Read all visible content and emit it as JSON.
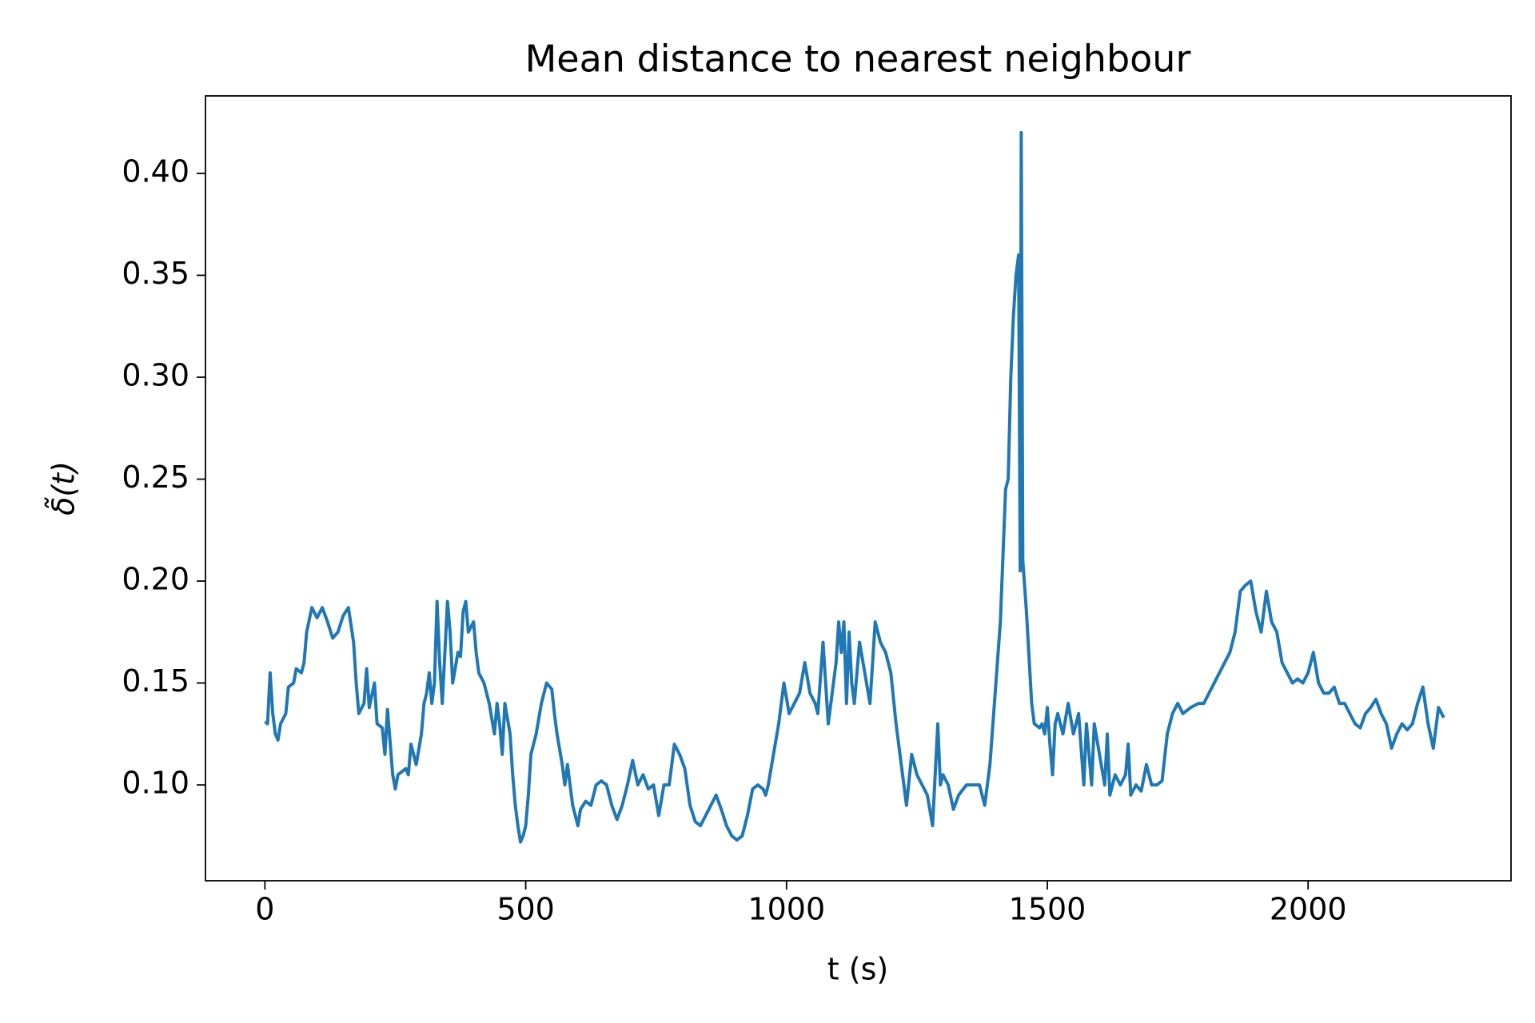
{
  "chart_data": {
    "type": "line",
    "title": "Mean distance to nearest neighbour",
    "xlabel": "t (s)",
    "ylabel": "δ̃(t)",
    "color": "#1f77b4",
    "xlim": [
      -114,
      2389
    ],
    "ylim": [
      0.053,
      0.438
    ],
    "xticks": [
      0,
      500,
      1000,
      1500,
      2000
    ],
    "yticks": [
      {
        "value": 0.1,
        "label": "0.10"
      },
      0.15,
      {
        "value": 0.2,
        "label": "0.20"
      },
      0.25,
      {
        "value": 0.3,
        "label": "0.30"
      },
      0.35,
      {
        "value": 0.4,
        "label": "0.40"
      }
    ],
    "x": [
      0,
      5,
      10,
      15,
      20,
      25,
      30,
      40,
      45,
      55,
      60,
      70,
      75,
      80,
      90,
      100,
      110,
      120,
      130,
      140,
      150,
      160,
      170,
      175,
      180,
      190,
      195,
      200,
      210,
      215,
      225,
      230,
      235,
      245,
      250,
      255,
      270,
      275,
      280,
      290,
      300,
      305,
      310,
      315,
      320,
      325,
      330,
      335,
      340,
      350,
      355,
      360,
      370,
      375,
      380,
      385,
      390,
      400,
      405,
      410,
      420,
      425,
      430,
      440,
      445,
      450,
      455,
      460,
      470,
      475,
      480,
      485,
      490,
      495,
      500,
      505,
      510,
      520,
      530,
      540,
      550,
      555,
      560,
      570,
      575,
      580,
      590,
      600,
      605,
      615,
      625,
      635,
      645,
      655,
      665,
      675,
      685,
      695,
      705,
      715,
      725,
      735,
      745,
      755,
      765,
      775,
      785,
      795,
      805,
      815,
      825,
      835,
      845,
      855,
      865,
      875,
      885,
      895,
      905,
      915,
      925,
      935,
      945,
      955,
      960,
      965,
      975,
      985,
      995,
      1005,
      1015,
      1025,
      1035,
      1045,
      1055,
      1060,
      1070,
      1075,
      1080,
      1090,
      1095,
      1100,
      1105,
      1110,
      1115,
      1120,
      1125,
      1130,
      1140,
      1150,
      1160,
      1170,
      1180,
      1190,
      1200,
      1210,
      1220,
      1230,
      1240,
      1250,
      1260,
      1270,
      1280,
      1290,
      1295,
      1300,
      1310,
      1320,
      1330,
      1345,
      1360,
      1370,
      1380,
      1390,
      1400,
      1410,
      1420,
      1425,
      1430,
      1435,
      1440,
      1445,
      1448,
      1450,
      1453,
      1460,
      1470,
      1475,
      1485,
      1490,
      1495,
      1500,
      1505,
      1510,
      1515,
      1520,
      1530,
      1540,
      1550,
      1560,
      1570,
      1575,
      1585,
      1590,
      1600,
      1610,
      1615,
      1620,
      1630,
      1640,
      1650,
      1655,
      1660,
      1670,
      1680,
      1690,
      1700,
      1710,
      1720,
      1730,
      1740,
      1750,
      1760,
      1775,
      1790,
      1800,
      1810,
      1820,
      1830,
      1840,
      1850,
      1860,
      1870,
      1880,
      1890,
      1900,
      1910,
      1920,
      1930,
      1940,
      1950,
      1960,
      1970,
      1980,
      1990,
      2000,
      2010,
      2020,
      2030,
      2040,
      2050,
      2060,
      2070,
      2080,
      2090,
      2100,
      2110,
      2120,
      2130,
      2140,
      2150,
      2160,
      2170,
      2180,
      2190,
      2200,
      2210,
      2220,
      2230,
      2240,
      2250,
      2260
    ],
    "values": [
      0.131,
      0.13,
      0.155,
      0.135,
      0.125,
      0.122,
      0.13,
      0.135,
      0.148,
      0.15,
      0.157,
      0.155,
      0.16,
      0.175,
      0.187,
      0.182,
      0.187,
      0.18,
      0.172,
      0.175,
      0.183,
      0.187,
      0.17,
      0.15,
      0.135,
      0.14,
      0.157,
      0.138,
      0.15,
      0.13,
      0.128,
      0.115,
      0.137,
      0.105,
      0.098,
      0.105,
      0.108,
      0.105,
      0.12,
      0.11,
      0.125,
      0.14,
      0.145,
      0.155,
      0.14,
      0.15,
      0.19,
      0.16,
      0.14,
      0.19,
      0.175,
      0.15,
      0.165,
      0.163,
      0.185,
      0.19,
      0.175,
      0.18,
      0.165,
      0.155,
      0.15,
      0.145,
      0.14,
      0.125,
      0.14,
      0.13,
      0.115,
      0.14,
      0.125,
      0.105,
      0.09,
      0.08,
      0.072,
      0.075,
      0.08,
      0.095,
      0.115,
      0.125,
      0.14,
      0.15,
      0.147,
      0.135,
      0.125,
      0.11,
      0.1,
      0.11,
      0.09,
      0.08,
      0.088,
      0.092,
      0.09,
      0.1,
      0.102,
      0.1,
      0.09,
      0.083,
      0.09,
      0.1,
      0.112,
      0.1,
      0.105,
      0.098,
      0.1,
      0.085,
      0.1,
      0.1,
      0.12,
      0.115,
      0.108,
      0.09,
      0.082,
      0.08,
      0.085,
      0.09,
      0.095,
      0.088,
      0.08,
      0.075,
      0.073,
      0.075,
      0.085,
      0.098,
      0.1,
      0.098,
      0.095,
      0.1,
      0.115,
      0.13,
      0.15,
      0.135,
      0.14,
      0.145,
      0.16,
      0.145,
      0.14,
      0.135,
      0.17,
      0.15,
      0.13,
      0.15,
      0.16,
      0.18,
      0.165,
      0.18,
      0.14,
      0.175,
      0.15,
      0.14,
      0.17,
      0.155,
      0.14,
      0.18,
      0.17,
      0.165,
      0.155,
      0.13,
      0.11,
      0.09,
      0.115,
      0.105,
      0.1,
      0.095,
      0.08,
      0.13,
      0.1,
      0.105,
      0.1,
      0.088,
      0.095,
      0.1,
      0.1,
      0.1,
      0.09,
      0.11,
      0.145,
      0.18,
      0.245,
      0.25,
      0.3,
      0.33,
      0.35,
      0.36,
      0.205,
      0.42,
      0.21,
      0.185,
      0.14,
      0.13,
      0.128,
      0.13,
      0.125,
      0.138,
      0.12,
      0.105,
      0.13,
      0.135,
      0.125,
      0.14,
      0.125,
      0.135,
      0.1,
      0.13,
      0.1,
      0.13,
      0.115,
      0.1,
      0.125,
      0.095,
      0.105,
      0.1,
      0.105,
      0.12,
      0.095,
      0.1,
      0.097,
      0.11,
      0.1,
      0.1,
      0.102,
      0.125,
      0.135,
      0.14,
      0.135,
      0.138,
      0.14,
      0.14,
      0.145,
      0.15,
      0.155,
      0.16,
      0.165,
      0.175,
      0.195,
      0.198,
      0.2,
      0.185,
      0.175,
      0.195,
      0.18,
      0.175,
      0.16,
      0.155,
      0.15,
      0.152,
      0.15,
      0.155,
      0.165,
      0.15,
      0.145,
      0.145,
      0.148,
      0.14,
      0.14,
      0.135,
      0.13,
      0.128,
      0.135,
      0.138,
      0.142,
      0.135,
      0.13,
      0.118,
      0.125,
      0.13,
      0.127,
      0.13,
      0.14,
      0.148,
      0.13,
      0.118,
      0.138,
      0.133
    ]
  }
}
